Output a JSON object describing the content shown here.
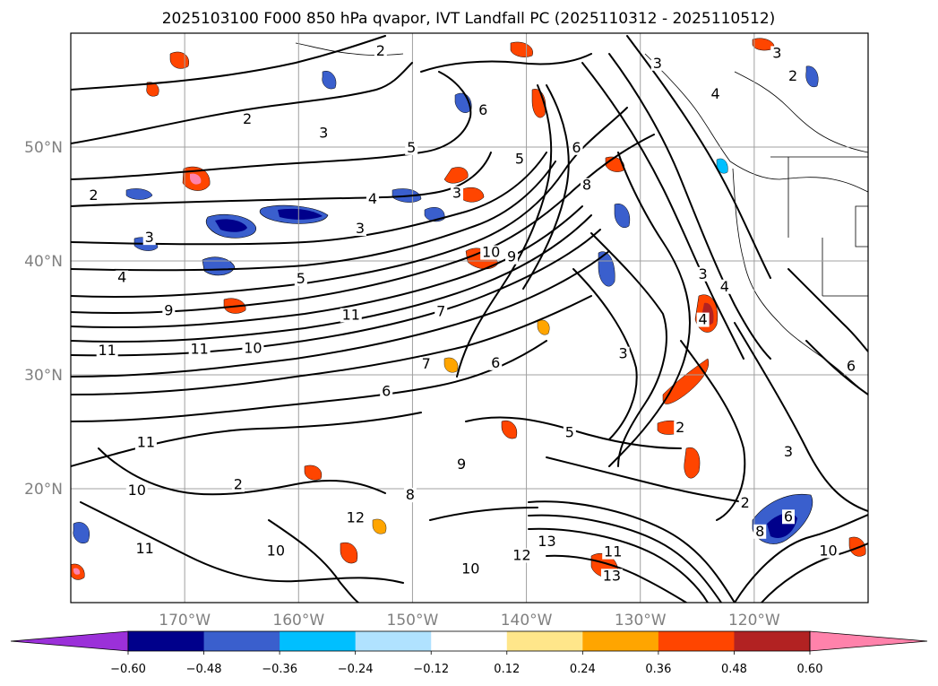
{
  "chart_data": {
    "type": "contour-map",
    "title": "2025103100 F000 850 hPa qvapor, IVT Landfall PC (2025110312 - 2025110512)",
    "lon_range": [
      -180,
      -110
    ],
    "lat_range": [
      10,
      60
    ],
    "lon_ticks": [
      -170,
      -160,
      -150,
      -140,
      -130,
      -120
    ],
    "lon_tick_labels": [
      "170°W",
      "160°W",
      "150°W",
      "140°W",
      "130°W",
      "120°W"
    ],
    "lat_ticks": [
      20,
      30,
      40,
      50
    ],
    "lat_tick_labels": [
      "20°N",
      "30°N",
      "40°N",
      "50°N"
    ],
    "grid": true,
    "colorbar": {
      "orientation": "horizontal",
      "extend": "both",
      "levels": [
        -0.6,
        -0.48,
        -0.36,
        -0.24,
        -0.12,
        0.12,
        0.24,
        0.36,
        0.48,
        0.6
      ],
      "tick_labels": [
        "−0.60",
        "−0.48",
        "−0.36",
        "−0.24",
        "−0.12",
        "0.12",
        "0.24",
        "0.36",
        "0.48",
        "0.60"
      ],
      "colors": [
        "#9b30d9",
        "#00008b",
        "#3a5fcd",
        "#00bfff",
        "#b0e2ff",
        "#ffffff",
        "#ffe68a",
        "#ffa500",
        "#ff4500",
        "#b22222",
        "#ff82ab"
      ]
    },
    "contour_labels": [
      {
        "lon": -152.8,
        "lat": 58.2,
        "text": "2"
      },
      {
        "lon": -143.8,
        "lat": 53.0,
        "text": "6"
      },
      {
        "lon": -128.5,
        "lat": 57.1,
        "text": "3"
      },
      {
        "lon": -118.0,
        "lat": 58.0,
        "text": "3"
      },
      {
        "lon": -116.6,
        "lat": 56.0,
        "text": "2"
      },
      {
        "lon": -123.4,
        "lat": 54.4,
        "text": "4"
      },
      {
        "lon": -164.5,
        "lat": 52.2,
        "text": "2"
      },
      {
        "lon": -157.8,
        "lat": 51.0,
        "text": "3"
      },
      {
        "lon": -150.1,
        "lat": 49.7,
        "text": "5"
      },
      {
        "lon": -140.6,
        "lat": 48.7,
        "text": "5"
      },
      {
        "lon": -135.6,
        "lat": 49.7,
        "text": "6"
      },
      {
        "lon": -178.0,
        "lat": 45.5,
        "text": "2"
      },
      {
        "lon": -153.5,
        "lat": 45.2,
        "text": "4"
      },
      {
        "lon": -175.5,
        "lat": 38.3,
        "text": "4"
      },
      {
        "lon": -173.1,
        "lat": 41.8,
        "text": "3"
      },
      {
        "lon": -154.6,
        "lat": 42.6,
        "text": "3"
      },
      {
        "lon": -146.1,
        "lat": 45.7,
        "text": "3"
      },
      {
        "lon": -141.3,
        "lat": 40.1,
        "text": "9"
      },
      {
        "lon": -143.1,
        "lat": 40.5,
        "text": "10"
      },
      {
        "lon": -159.8,
        "lat": 38.2,
        "text": "5"
      },
      {
        "lon": -147.5,
        "lat": 35.3,
        "text": "7"
      },
      {
        "lon": -171.4,
        "lat": 35.4,
        "text": "9"
      },
      {
        "lon": -155.4,
        "lat": 35.0,
        "text": "11"
      },
      {
        "lon": -176.8,
        "lat": 31.9,
        "text": "11"
      },
      {
        "lon": -168.7,
        "lat": 32.0,
        "text": "11"
      },
      {
        "lon": -164.0,
        "lat": 32.1,
        "text": "10"
      },
      {
        "lon": -134.7,
        "lat": 46.4,
        "text": "8"
      },
      {
        "lon": -131.5,
        "lat": 31.6,
        "text": "3"
      },
      {
        "lon": -124.5,
        "lat": 38.6,
        "text": "3"
      },
      {
        "lon": -122.6,
        "lat": 37.5,
        "text": "4"
      },
      {
        "lon": -124.5,
        "lat": 34.6,
        "text": "4"
      },
      {
        "lon": -126.5,
        "lat": 25.1,
        "text": "2"
      },
      {
        "lon": -117.0,
        "lat": 23.0,
        "text": "3"
      },
      {
        "lon": -111.5,
        "lat": 30.5,
        "text": "6"
      },
      {
        "lon": -136.2,
        "lat": 24.7,
        "text": "5"
      },
      {
        "lon": -145.7,
        "lat": 21.9,
        "text": "9"
      },
      {
        "lon": -150.2,
        "lat": 19.2,
        "text": "8"
      },
      {
        "lon": -152.3,
        "lat": 28.3,
        "text": "6"
      },
      {
        "lon": -148.8,
        "lat": 30.7,
        "text": "7"
      },
      {
        "lon": -142.7,
        "lat": 30.8,
        "text": "6"
      },
      {
        "lon": -174.2,
        "lat": 19.6,
        "text": "10"
      },
      {
        "lon": -165.3,
        "lat": 20.1,
        "text": "2"
      },
      {
        "lon": -173.4,
        "lat": 23.8,
        "text": "11"
      },
      {
        "lon": -155.0,
        "lat": 17.2,
        "text": "12"
      },
      {
        "lon": -140.4,
        "lat": 13.9,
        "text": "12"
      },
      {
        "lon": -138.2,
        "lat": 15.1,
        "text": "13"
      },
      {
        "lon": -132.5,
        "lat": 12.1,
        "text": "13"
      },
      {
        "lon": -132.4,
        "lat": 14.2,
        "text": "11"
      },
      {
        "lon": -144.9,
        "lat": 12.7,
        "text": "10"
      },
      {
        "lon": -120.8,
        "lat": 18.5,
        "text": "2"
      },
      {
        "lon": -117.0,
        "lat": 17.3,
        "text": "6"
      },
      {
        "lon": -119.5,
        "lat": 16.0,
        "text": "8"
      },
      {
        "lon": -113.5,
        "lat": 14.3,
        "text": "10"
      },
      {
        "lon": -173.5,
        "lat": 14.5,
        "text": "11"
      },
      {
        "lon": -162.0,
        "lat": 14.3,
        "text": "10"
      }
    ]
  }
}
